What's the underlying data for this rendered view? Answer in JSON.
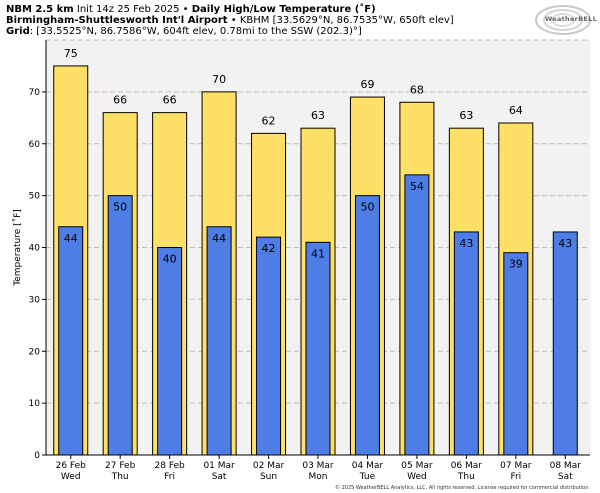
{
  "header": {
    "model": "NBM 2.5 km",
    "init": "Init 14z 25 Feb 2025",
    "product": "Daily High/Low Temperature (˚F)",
    "station_name": "Birmingham-Shuttlesworth Int'l Airport",
    "station_info": "KBHM [33.5629°N, 86.7535°W, 650ft elev]",
    "grid_label": "Grid",
    "grid_info": "[33.5525°N, 86.7586°W, 604ft elev, 0.78mi to the SSW (202.3)°]",
    "separator": "•"
  },
  "logo": {
    "text": "WeatherBELL",
    "icon": "swirl-logo-icon"
  },
  "copyright": "© 2025 WeatherBELL Analytics, LLC. All rights reserved. License required for commercial distribution.",
  "colors": {
    "high": "#ffe066",
    "low": "#4f7de6",
    "plot_bg": "#f2f2f2",
    "grid": "#bbbbbb"
  },
  "chart_data": {
    "type": "bar",
    "title": "Daily High/Low Temperature (˚F)",
    "ylabel": "Temperature [˚F]",
    "xlabel": "",
    "ylim": [
      0,
      80
    ],
    "yticks": [
      0,
      10,
      20,
      30,
      40,
      50,
      60,
      70
    ],
    "grid": true,
    "categories": [
      [
        "26 Feb",
        "Wed"
      ],
      [
        "27 Feb",
        "Thu"
      ],
      [
        "28 Feb",
        "Fri"
      ],
      [
        "01 Mar",
        "Sat"
      ],
      [
        "02 Mar",
        "Sun"
      ],
      [
        "03 Mar",
        "Mon"
      ],
      [
        "04 Mar",
        "Tue"
      ],
      [
        "05 Mar",
        "Wed"
      ],
      [
        "06 Mar",
        "Thu"
      ],
      [
        "07 Mar",
        "Fri"
      ],
      [
        "08 Mar",
        "Sat"
      ]
    ],
    "series": [
      {
        "name": "High",
        "values": [
          75,
          66,
          66,
          70,
          62,
          63,
          69,
          68,
          63,
          64,
          null
        ]
      },
      {
        "name": "Low",
        "values": [
          44,
          50,
          40,
          44,
          42,
          41,
          50,
          54,
          43,
          39,
          43
        ]
      }
    ]
  }
}
